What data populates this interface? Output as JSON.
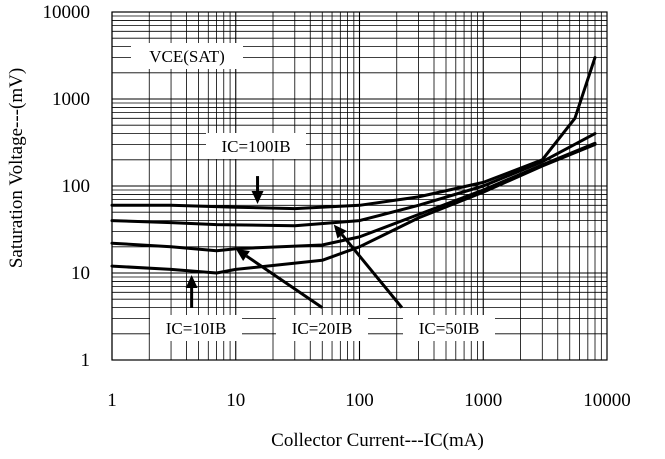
{
  "chart_data": {
    "type": "line",
    "xscale": "log",
    "yscale": "log",
    "xlim": [
      1,
      10000
    ],
    "ylim": [
      1,
      10000
    ],
    "xticks": [
      "1",
      "10",
      "100",
      "1000",
      "10000"
    ],
    "yticks": [
      "1",
      "10",
      "100",
      "1000",
      "10000"
    ],
    "xlabel": "Collector Current---IC(mA)",
    "ylabel": "Saturation Voltage---(mV)",
    "grid": true,
    "title": "VCE(SAT)",
    "series": [
      {
        "name": "IC=100IB",
        "x": [
          1,
          3,
          10,
          30,
          100,
          300,
          1000,
          3000,
          5500,
          8000
        ],
        "y": [
          60,
          60,
          57,
          55,
          60,
          75,
          110,
          200,
          600,
          3000
        ]
      },
      {
        "name": "IC=50IB",
        "x": [
          1,
          3,
          7,
          30,
          100,
          300,
          1000,
          3000,
          8000
        ],
        "y": [
          40,
          38,
          36,
          35,
          40,
          60,
          100,
          190,
          400
        ]
      },
      {
        "name": "IC=20IB",
        "x": [
          1,
          3,
          7,
          10,
          50,
          100,
          300,
          1000,
          3000,
          8000
        ],
        "y": [
          22,
          20,
          18,
          19,
          21,
          26,
          47,
          90,
          175,
          310
        ]
      },
      {
        "name": "IC=10IB",
        "x": [
          1,
          3,
          7,
          10,
          50,
          100,
          300,
          1000,
          3000,
          8000
        ],
        "y": [
          12,
          11,
          10,
          11,
          14,
          20,
          43,
          85,
          170,
          300
        ]
      }
    ],
    "annotations": [
      {
        "text": "IC=100IB",
        "arrow_x": 15,
        "arrow_y_from": 130,
        "arrow_y_to": 62
      },
      {
        "text": "IC=10IB",
        "arrow_x": 4.4,
        "arrow_y_from": 4,
        "arrow_y_to": 9.5
      },
      {
        "text": "IC=20IB",
        "arrow_from_x": 50,
        "arrow_from_y": 4,
        "arrow_to_x": 10,
        "arrow_to_y": 19
      },
      {
        "text": "IC=50IB",
        "arrow_from_x": 220,
        "arrow_from_y": 4,
        "arrow_to_x": 62,
        "arrow_to_y": 36
      }
    ]
  }
}
